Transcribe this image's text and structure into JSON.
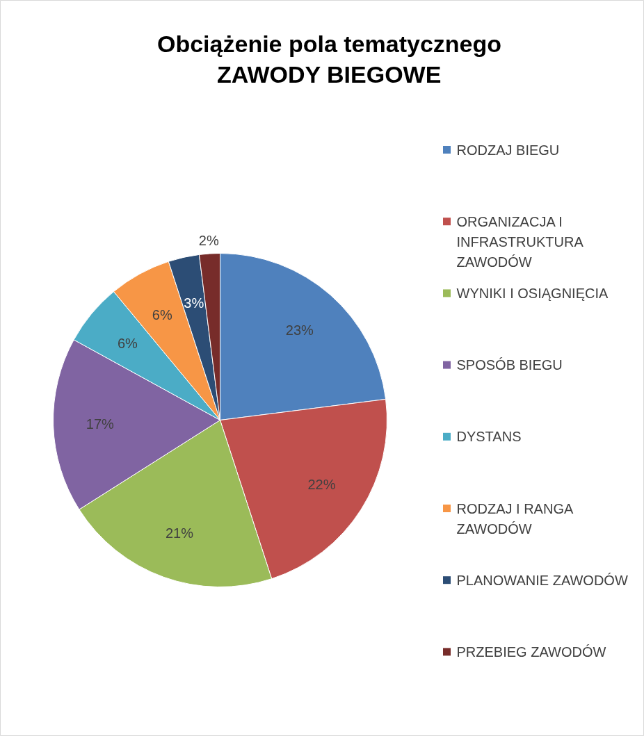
{
  "chart_data": {
    "type": "pie",
    "title": "Obciążenie pola tematycznego ZAWODY BIEGOWE",
    "categories": [
      "RODZAJ BIEGU",
      "ORGANIZACJA I INFRASTRUKTURA ZAWODÓW",
      "WYNIKI I OSIĄGNIĘCIA",
      "SPOSÓB BIEGU",
      "DYSTANS",
      "RODZAJ I RANGA ZAWODÓW",
      "PLANOWANIE ZAWODÓW",
      "PRZEBIEG ZAWODÓW"
    ],
    "values": [
      23,
      22,
      21,
      17,
      6,
      6,
      3,
      2
    ],
    "colors": [
      "#4f81bd",
      "#c0504d",
      "#9bbb59",
      "#8064a2",
      "#4bacc6",
      "#f79646",
      "#2c4d75",
      "#772c2a"
    ],
    "value_labels": [
      "23%",
      "22%",
      "21%",
      "17%",
      "6%",
      "6%",
      "3%",
      "2%"
    ],
    "legend": "right"
  }
}
